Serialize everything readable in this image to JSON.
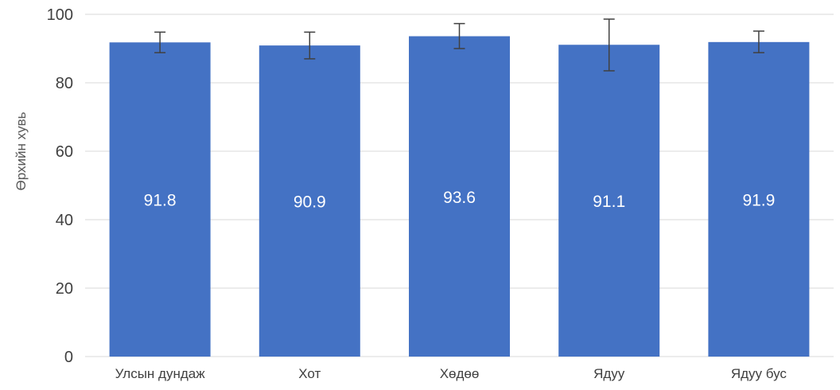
{
  "chart_data": {
    "type": "bar",
    "title": "",
    "xlabel": "",
    "ylabel": "Өрхийн хувь",
    "ylim": [
      0,
      100
    ],
    "yticks": [
      0,
      20,
      40,
      60,
      80,
      100
    ],
    "grid": true,
    "categories": [
      "Улсын дундаж",
      "Хот",
      "Хөдөө",
      "Ядуу",
      "Ядуу бус"
    ],
    "values": [
      91.8,
      90.9,
      93.6,
      91.1,
      91.9
    ],
    "data_labels": [
      "91.8",
      "90.9",
      "93.6",
      "91.1",
      "91.9"
    ],
    "error_bars": {
      "low": [
        88.8,
        87.0,
        90.0,
        83.5,
        88.8
      ],
      "high": [
        94.8,
        94.8,
        97.3,
        98.6,
        95.1
      ]
    },
    "colors": {
      "bar": "#4472C4",
      "grid": "#D9D9D9",
      "error_bar": "#404040",
      "data_label": "#FFFFFF",
      "tick_label": "#404040"
    }
  }
}
